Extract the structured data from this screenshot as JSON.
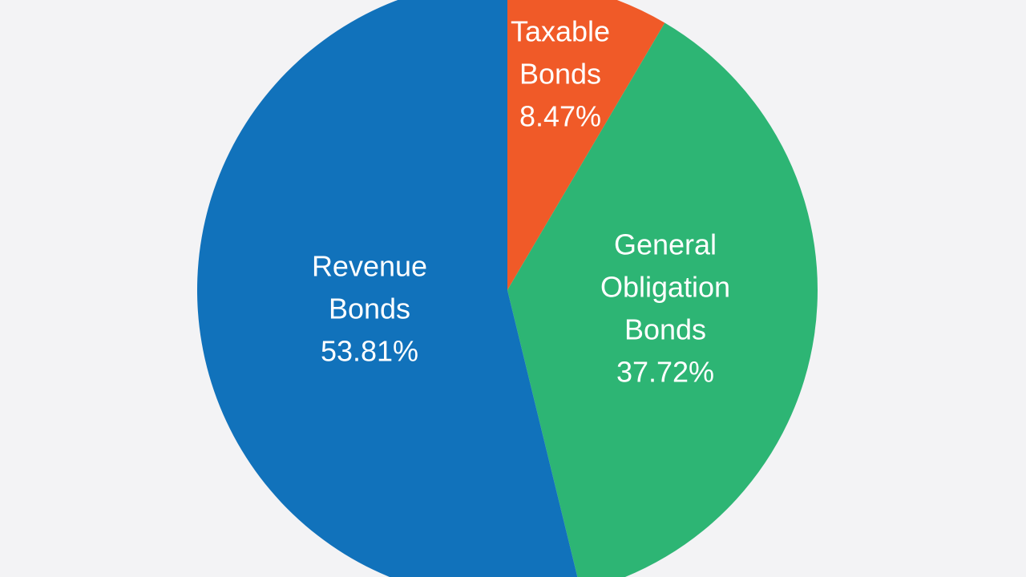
{
  "chart_data": {
    "type": "pie",
    "start_angle_deg": 0,
    "direction": "clockwise",
    "slices": [
      {
        "label_lines": [
          "Taxable",
          "Bonds"
        ],
        "value": 8.47,
        "value_text": "8.47%",
        "color": "#f05a28"
      },
      {
        "label_lines": [
          "General",
          "Obligation",
          "Bonds"
        ],
        "value": 37.72,
        "value_text": "37.72%",
        "color": "#2db574"
      },
      {
        "label_lines": [
          "Revenue",
          "Bonds"
        ],
        "value": 53.81,
        "value_text": "53.81%",
        "color": "#1172bb"
      }
    ]
  },
  "colors": {
    "background": "#f3f3f5",
    "label_text": "#ffffff"
  }
}
